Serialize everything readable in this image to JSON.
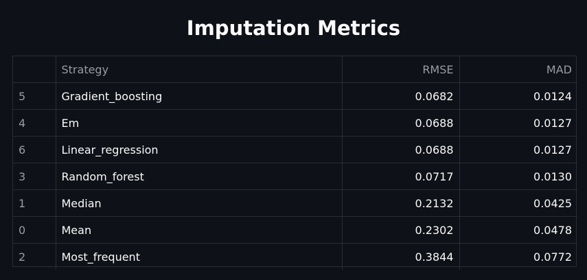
{
  "title": "Imputation Metrics",
  "table": {
    "headers": {
      "index": "",
      "strategy": "Strategy",
      "rmse": "RMSE",
      "mad": "MAD"
    },
    "rows": [
      {
        "index": "5",
        "strategy": "Gradient_boosting",
        "rmse": "0.0682",
        "mad": "0.0124"
      },
      {
        "index": "4",
        "strategy": "Em",
        "rmse": "0.0688",
        "mad": "0.0127"
      },
      {
        "index": "6",
        "strategy": "Linear_regression",
        "rmse": "0.0688",
        "mad": "0.0127"
      },
      {
        "index": "3",
        "strategy": "Random_forest",
        "rmse": "0.0717",
        "mad": "0.0130"
      },
      {
        "index": "1",
        "strategy": "Median",
        "rmse": "0.2132",
        "mad": "0.0425"
      },
      {
        "index": "0",
        "strategy": "Mean",
        "rmse": "0.2302",
        "mad": "0.0478"
      },
      {
        "index": "2",
        "strategy": "Most_frequent",
        "rmse": "0.3844",
        "mad": "0.0772"
      }
    ]
  }
}
